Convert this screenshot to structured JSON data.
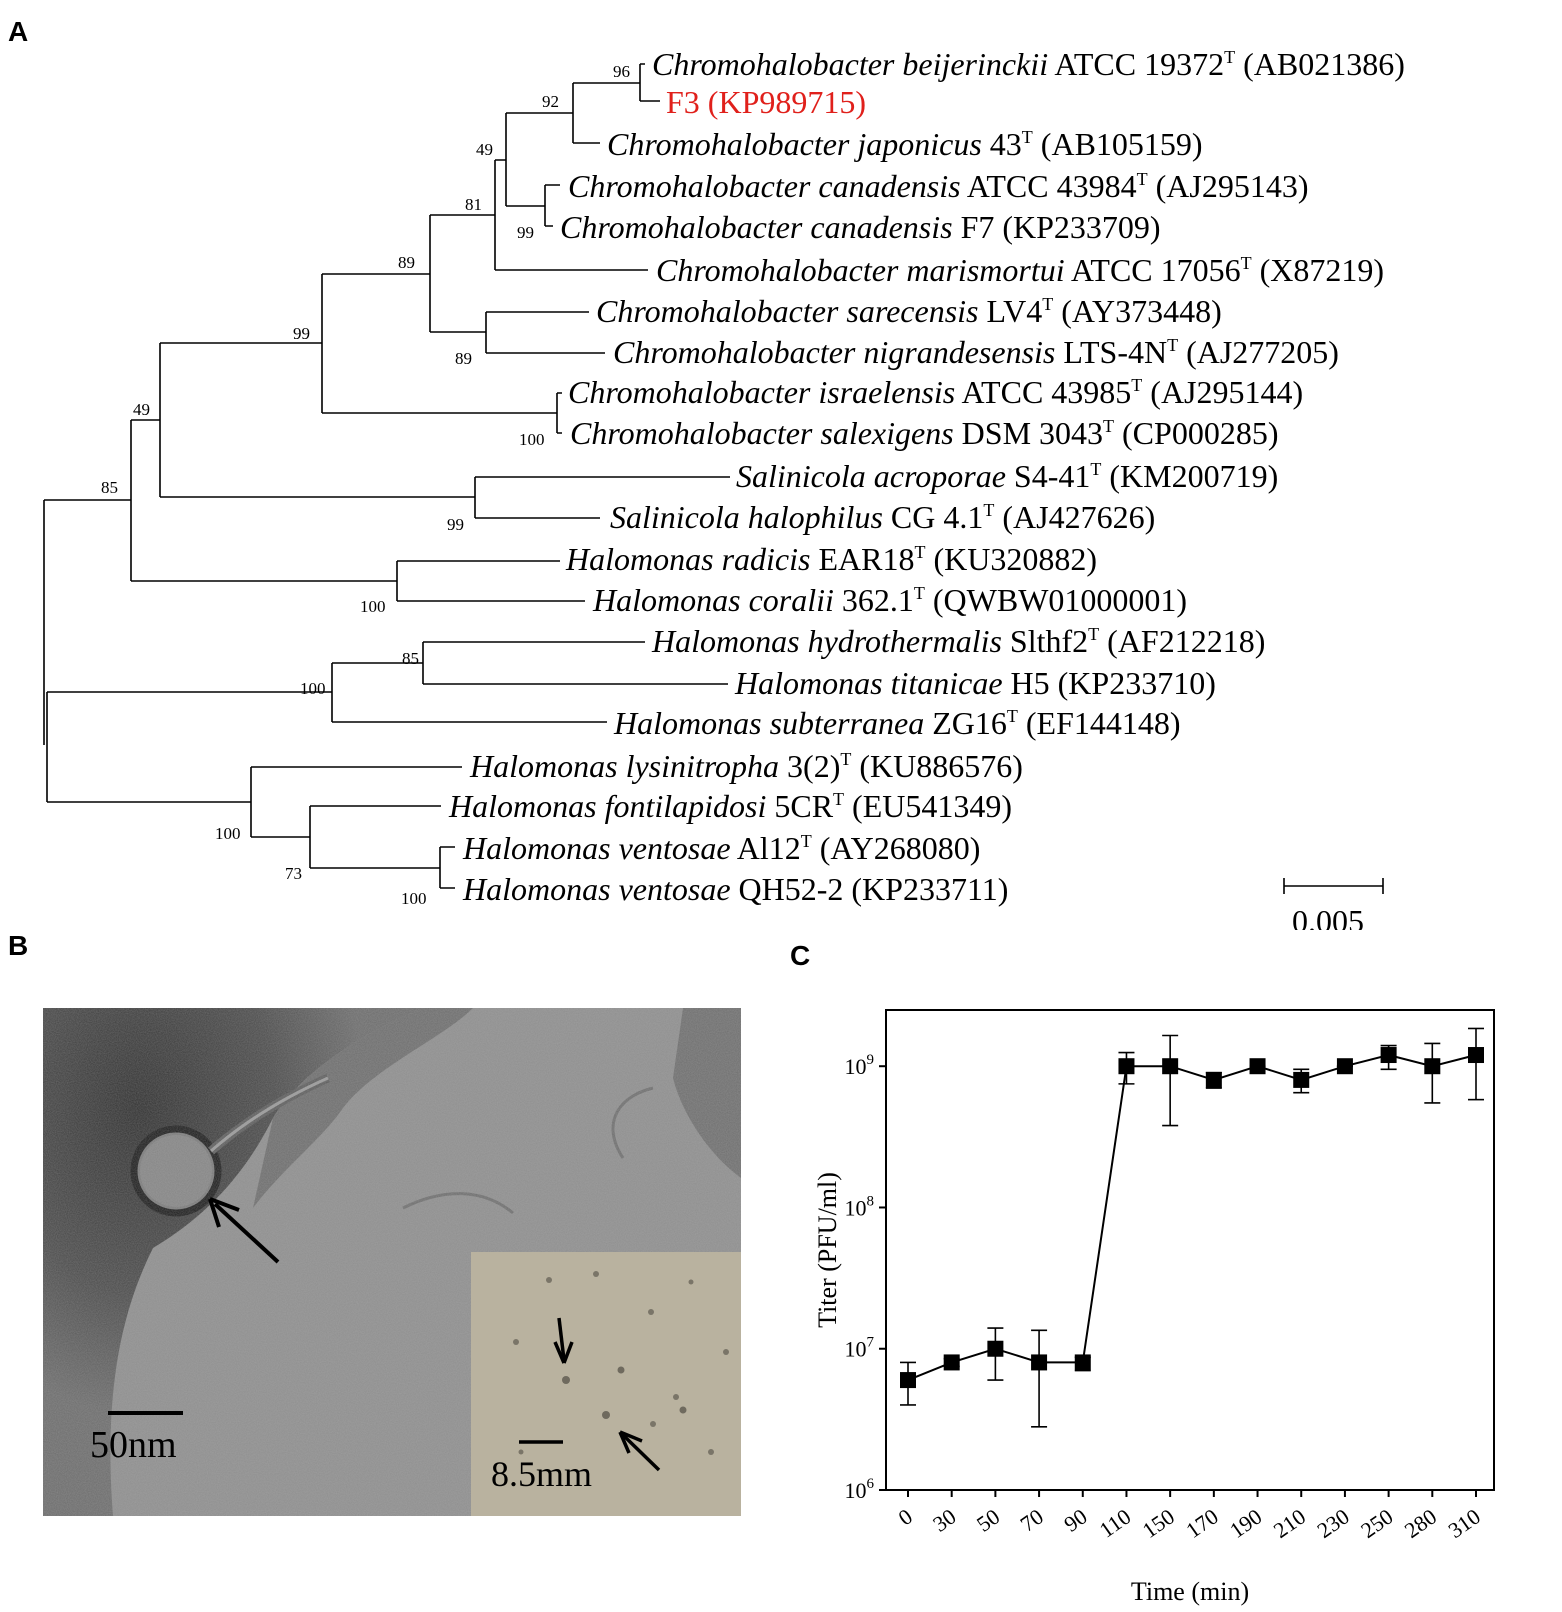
{
  "panels": {
    "A": "A",
    "B": "B",
    "C": "C"
  },
  "tree": {
    "leaves": [
      {
        "species": "Chromohalobacter beijerinckii",
        "rest": " ATCC 19372",
        "sup": "T",
        "acc": " (AB021386)",
        "color": "#000000"
      },
      {
        "species": "",
        "rest": "F3 (KP989715)",
        "sup": "",
        "acc": "",
        "color": "#e0201b"
      },
      {
        "species": "Chromohalobacter japonicus",
        "rest": " 43",
        "sup": "T",
        "acc": " (AB105159)",
        "color": "#000000"
      },
      {
        "species": "Chromohalobacter canadensis",
        "rest": " ATCC 43984",
        "sup": "T",
        "acc": " (AJ295143)",
        "color": "#000000"
      },
      {
        "species": "Chromohalobacter canadensis",
        "rest": " F7 (KP233709)",
        "sup": "",
        "acc": "",
        "color": "#000000"
      },
      {
        "species": "Chromohalobacter marismortui",
        "rest": " ATCC 17056",
        "sup": "T",
        "acc": " (X87219)",
        "color": "#000000"
      },
      {
        "species": "Chromohalobacter sarecensis",
        "rest": " LV4",
        "sup": "T",
        "acc": " (AY373448)",
        "color": "#000000"
      },
      {
        "species": "Chromohalobacter nigrandesensis",
        "rest": " LTS-4N",
        "sup": "T",
        "acc": " (AJ277205)",
        "color": "#000000"
      },
      {
        "species": "Chromohalobacter israelensis",
        "rest": " ATCC 43985",
        "sup": "T",
        "acc": " (AJ295144)",
        "color": "#000000"
      },
      {
        "species": "Chromohalobacter salexigens",
        "rest": " DSM 3043",
        "sup": "T",
        "acc": " (CP000285)",
        "color": "#000000"
      },
      {
        "species": "Salinicola acroporae",
        "rest": " S4-41",
        "sup": "T",
        "acc": " (KM200719)",
        "color": "#000000"
      },
      {
        "species": "Salinicola halophilus",
        "rest": " CG 4.1",
        "sup": "T",
        "acc": " (AJ427626)",
        "color": "#000000"
      },
      {
        "species": "Halomonas radicis",
        "rest": " EAR18",
        "sup": "T",
        "acc": " (KU320882)",
        "color": "#000000"
      },
      {
        "species": "Halomonas coralii",
        "rest": " 362.1",
        "sup": "T",
        "acc": " (QWBW01000001)",
        "color": "#000000"
      },
      {
        "species": "Halomonas hydrothermalis",
        "rest": " Slthf2",
        "sup": "T",
        "acc": " (AF212218)",
        "color": "#000000"
      },
      {
        "species": "Halomonas titanicae",
        "rest": " H5 (KP233710)",
        "sup": "",
        "acc": "",
        "color": "#000000"
      },
      {
        "species": "Halomonas subterranea",
        "rest": " ZG16",
        "sup": "T",
        "acc": " (EF144148)",
        "color": "#000000"
      },
      {
        "species": "Halomonas lysinitropha",
        "rest": " 3(2)",
        "sup": "T",
        "acc": " (KU886576)",
        "color": "#000000"
      },
      {
        "species": "Halomonas fontilapidosi",
        "rest": " 5CR",
        "sup": "T",
        "acc": " (EU541349)",
        "color": "#000000"
      },
      {
        "species": "Halomonas ventosae",
        "rest": " Al12",
        "sup": "T",
        "acc": " (AY268080)",
        "color": "#000000"
      },
      {
        "species": "Halomonas ventosae",
        "rest": " QH52-2 (KP233711)",
        "sup": "",
        "acc": "",
        "color": "#000000"
      }
    ],
    "bootstrap": [
      "96",
      "92",
      "49",
      "81",
      "99",
      "89",
      "99",
      "89",
      "100",
      "49",
      "99",
      "85",
      "100",
      "85",
      "100",
      "100",
      "73",
      "100"
    ],
    "scale_label": "0.005"
  },
  "micrograph": {
    "scale_main": "50nm",
    "scale_inset": "8.5mm"
  },
  "chart_data": {
    "type": "line",
    "xlabel": "Time (min)",
    "ylabel": "Titer (PFU/ml)",
    "y_scale": "log",
    "ylim": [
      1000000,
      2500000000
    ],
    "y_ticks": [
      "10",
      "10",
      "10",
      "10"
    ],
    "y_tick_exponents": [
      "6",
      "7",
      "8",
      "9"
    ],
    "categories": [
      "0",
      "30",
      "50",
      "70",
      "90",
      "110",
      "150",
      "170",
      "190",
      "210",
      "230",
      "250",
      "280",
      "310"
    ],
    "values": [
      6000000,
      8000000,
      10000000,
      8000000,
      8000000,
      1000000000,
      1000000000,
      800000000,
      1000000000,
      800000000,
      1000000000,
      1200000000,
      1000000000,
      1200000000
    ],
    "err_low": [
      4000000,
      7500000,
      6000000,
      2800000,
      7000000,
      750000000,
      380000000,
      700000000,
      1000000000,
      650000000,
      1000000000,
      950000000,
      550000000,
      580000000
    ],
    "err_high": [
      8000000,
      8500000,
      14000000,
      13500000,
      8700000,
      1250000000,
      1650000000,
      900000000,
      1000000000,
      950000000,
      1000000000,
      1400000000,
      1450000000,
      1850000000
    ],
    "marker": "square",
    "color": "#000000"
  }
}
